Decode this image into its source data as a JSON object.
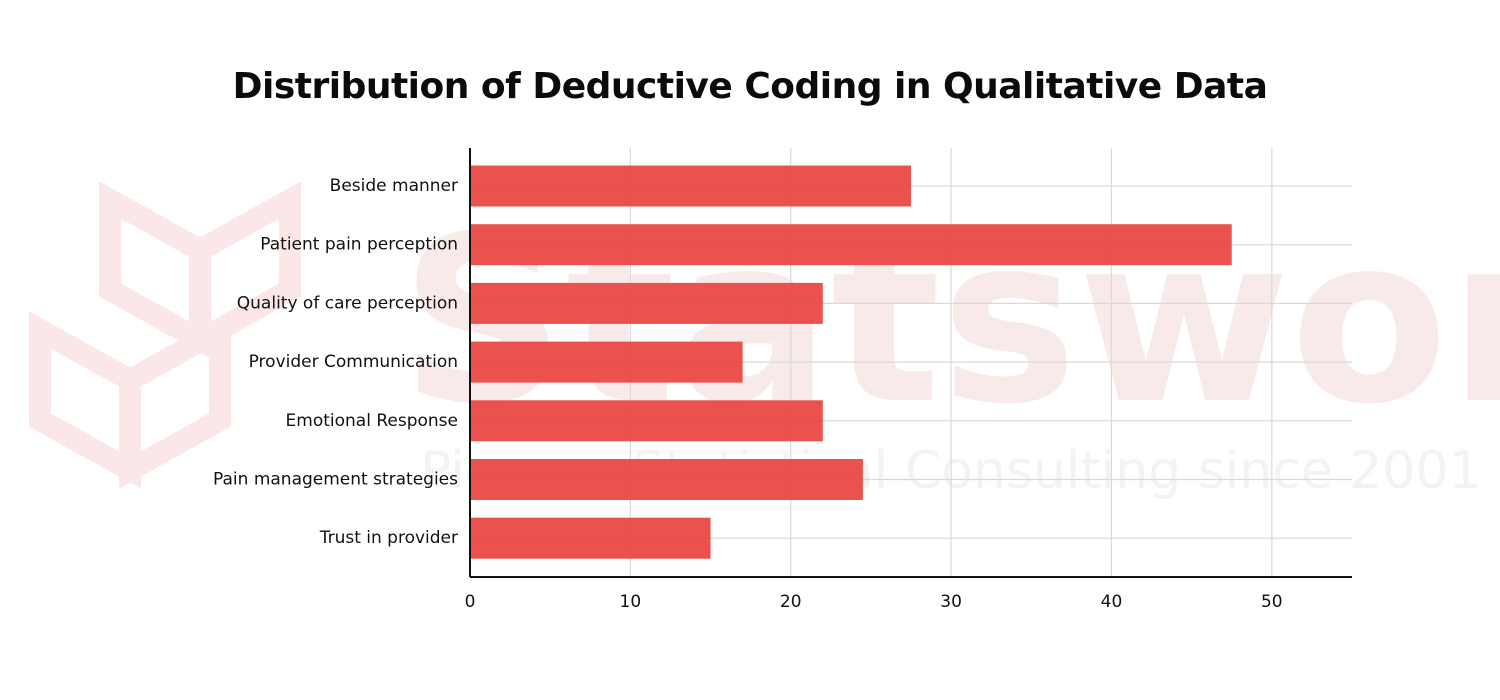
{
  "chart_data": {
    "type": "bar",
    "orientation": "horizontal",
    "title": "Distribution of Deductive Coding in Qualitative Data",
    "xlabel": "",
    "ylabel": "",
    "categories": [
      "Beside manner",
      "Patient pain perception",
      "Quality of care perception",
      "Provider Communication",
      "Emotional Response",
      "Pain management strategies",
      "Trust in provider"
    ],
    "values": [
      27.5,
      47.5,
      22,
      17,
      22,
      24.5,
      15
    ],
    "xlim": [
      0,
      55
    ],
    "xticks": [
      0,
      10,
      20,
      30,
      40,
      50
    ],
    "grid": true,
    "bar_color": "#ea4a46"
  },
  "watermark": {
    "brand": "Statswork",
    "tagline": "Pioneer Statistical Consulting since 2001"
  }
}
